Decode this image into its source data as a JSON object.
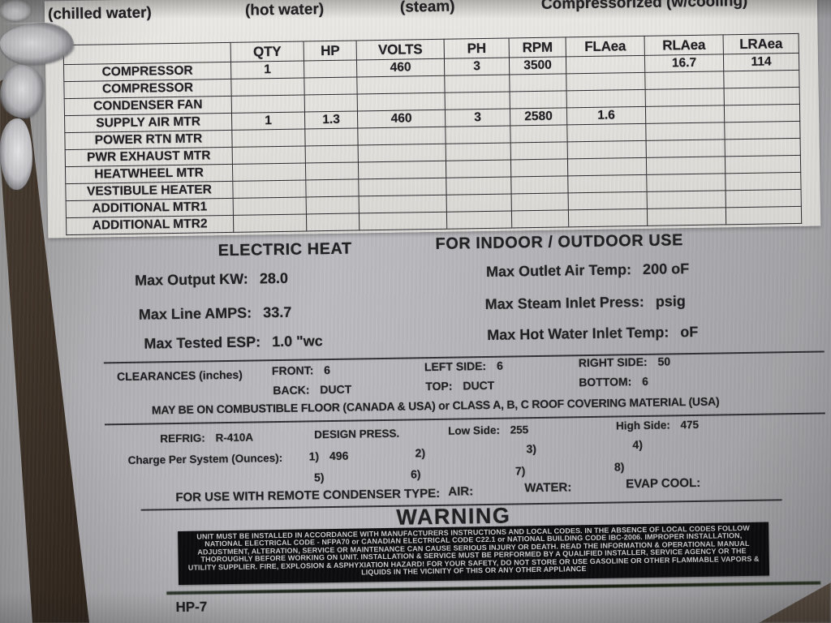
{
  "colors": {
    "plate_metal": "#b4b4b8",
    "sticker": "#e6e4e0",
    "ink": "#1f1f22",
    "warning_bg": "#0c0c0e",
    "warning_text": "#c9c9c9",
    "cabinet_edge": "#241a12"
  },
  "top_labels": {
    "chilled": "(chilled water)",
    "hot": "(hot water)",
    "steam": "(steam)",
    "compressorized": "Compressorized (w/cooling)"
  },
  "spec_table": {
    "columns": [
      "",
      "QTY",
      "HP",
      "VOLTS",
      "PH",
      "RPM",
      "FLAea",
      "RLAea",
      "LRAea"
    ],
    "rows": [
      {
        "label": "COMPRESSOR",
        "values": [
          "1",
          "",
          "460",
          "3",
          "3500",
          "",
          "16.7",
          "114"
        ]
      },
      {
        "label": "COMPRESSOR",
        "values": [
          "",
          "",
          "",
          "",
          "",
          "",
          "",
          ""
        ]
      },
      {
        "label": "CONDENSER FAN",
        "values": [
          "",
          "",
          "",
          "",
          "",
          "",
          "",
          ""
        ]
      },
      {
        "label": "SUPPLY AIR MTR",
        "values": [
          "1",
          "1.3",
          "460",
          "3",
          "2580",
          "1.6",
          "",
          ""
        ]
      },
      {
        "label": "POWER RTN MTR",
        "values": [
          "",
          "",
          "",
          "",
          "",
          "",
          "",
          ""
        ]
      },
      {
        "label": "PWR EXHAUST MTR",
        "values": [
          "",
          "",
          "",
          "",
          "",
          "",
          "",
          ""
        ]
      },
      {
        "label": "HEATWHEEL MTR",
        "values": [
          "",
          "",
          "",
          "",
          "",
          "",
          "",
          ""
        ]
      },
      {
        "label": "VESTIBULE HEATER",
        "values": [
          "",
          "",
          "",
          "",
          "",
          "",
          "",
          ""
        ]
      },
      {
        "label": "ADDITIONAL MTR1",
        "values": [
          "",
          "",
          "",
          "",
          "",
          "",
          "",
          ""
        ]
      },
      {
        "label": "ADDITIONAL MTR2",
        "values": [
          "",
          "",
          "",
          "",
          "",
          "",
          "",
          ""
        ]
      }
    ]
  },
  "electric_heat": {
    "title": "ELECTRIC HEAT",
    "lines": [
      {
        "label": "Max Output KW:",
        "value": "28.0"
      },
      {
        "label": "Max Line AMPS:",
        "value": "33.7"
      },
      {
        "label": "Max Tested ESP:",
        "value": "1.0 \"wc"
      }
    ]
  },
  "indoor_outdoor": {
    "title": "FOR INDOOR / OUTDOOR USE",
    "lines": [
      {
        "label": "Max Outlet Air Temp:",
        "value": "200 oF"
      },
      {
        "label": "Max Steam Inlet Press:",
        "value": "psig"
      },
      {
        "label": "Max Hot Water Inlet Temp:",
        "value": "oF"
      }
    ]
  },
  "clearances": {
    "heading": "CLEARANCES (inches)",
    "front": {
      "label": "FRONT:",
      "value": "6"
    },
    "left_side": {
      "label": "LEFT SIDE:",
      "value": "6"
    },
    "right_side": {
      "label": "RIGHT SIDE:",
      "value": "50"
    },
    "back": {
      "label": "BACK:",
      "value": "DUCT"
    },
    "top": {
      "label": "TOP:",
      "value": "DUCT"
    },
    "bottom": {
      "label": "BOTTOM:",
      "value": "6"
    },
    "note": "MAY BE ON COMBUSTIBLE FLOOR (CANADA & USA) or CLASS A, B, C ROOF COVERING MATERIAL (USA)"
  },
  "refrigerant": {
    "refrig_label": "REFRIG:",
    "refrig_value": "R-410A",
    "design_press_label": "DESIGN PRESS.",
    "low_side": {
      "label": "Low Side:",
      "value": "255"
    },
    "high_side": {
      "label": "High Side:",
      "value": "475"
    },
    "charge_label": "Charge Per System (Ounces):",
    "charges": [
      {
        "n": "1)",
        "v": "496"
      },
      {
        "n": "2)",
        "v": ""
      },
      {
        "n": "3)",
        "v": ""
      },
      {
        "n": "4)",
        "v": ""
      },
      {
        "n": "5)",
        "v": ""
      },
      {
        "n": "6)",
        "v": ""
      },
      {
        "n": "7)",
        "v": ""
      },
      {
        "n": "8)",
        "v": ""
      }
    ]
  },
  "condenser": {
    "label": "FOR USE WITH REMOTE CONDENSER TYPE:",
    "air": "AIR:",
    "water": "WATER:",
    "evap": "EVAP COOL:"
  },
  "warning": {
    "title": "WARNING",
    "text": "UNIT MUST BE INSTALLED IN ACCORDANCE WITH MANUFACTURERS INSTRUCTIONS AND LOCAL CODES.  IN THE ABSENCE OF LOCAL CODES FOLLOW NATIONAL ELECTRICAL CODE - NFPA70 or CANADIAN ELECTRICAL CODE C22.1 or NATIONAL BUILDING CODE IBC-2006.  IMPROPER INSTALLATION, ADJUSTMENT, ALTERATION, SERVICE OR MAINTENANCE CAN CAUSE SERIOUS INJURY OR DEATH.  READ THE INFORMATION & OPERATIONAL MANUAL THOROUGHLY BEFORE WORKING ON UNIT.  INSTALLATION & SERVICE MUST BE PERFORMED BY A QUALIFIED INSTALLER, SERVICE AGENCY OR THE UTILITY SUPPLIER.  FIRE, EXPLOSION & ASPHYXIATION HAZARD!  FOR YOUR SAFETY, DO NOT STORE OR USE GASOLINE OR OTHER FLAMMABLE VAPORS & LIQUIDS IN THE VICINITY OF THIS OR ANY OTHER APPLIANCE"
  },
  "footer": {
    "model_code": "HP-7"
  }
}
